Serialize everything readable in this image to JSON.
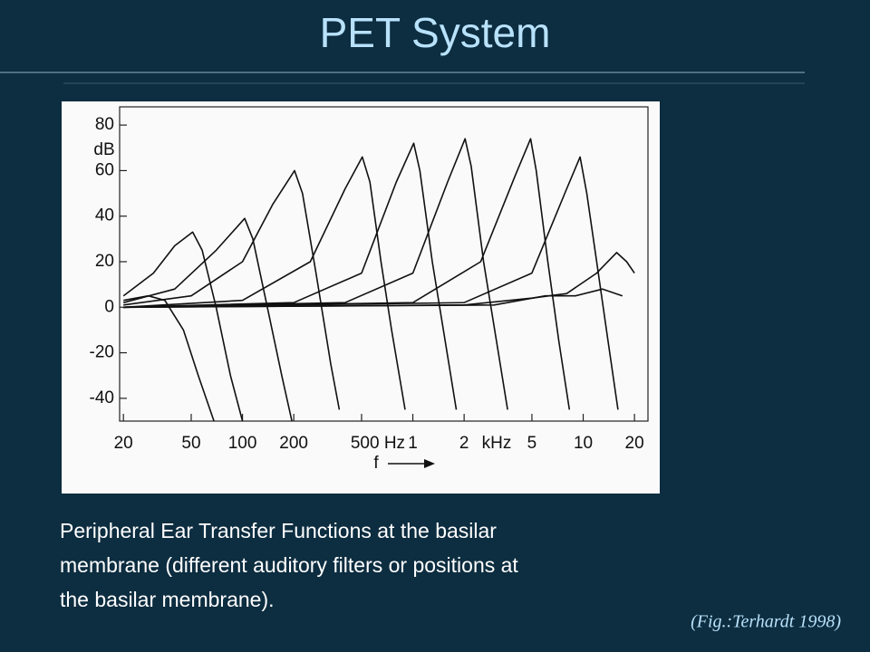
{
  "title": "PET System",
  "caption": [
    "Peripheral Ear Transfer Functions at the basilar",
    "membrane (different auditory filters or positions at",
    "the basilar membrane)."
  ],
  "source": "(Fig.:Terhardt 1998)",
  "chart_data": {
    "type": "line",
    "xlog": true,
    "color": "#111111",
    "ylabel": "dB",
    "xlabel": "f",
    "xunit": "kHz",
    "xlim": [
      19,
      24000
    ],
    "ylim": [
      -50,
      88
    ],
    "xticks": [
      20,
      50,
      100,
      200,
      {
        "value": 500,
        "label": "500 Hz"
      },
      {
        "value": 1000,
        "label": "1"
      },
      {
        "value": 2000,
        "label": "2"
      },
      {
        "value": 5000,
        "label": "5"
      },
      {
        "value": 10000,
        "label": "10"
      },
      {
        "value": 20000,
        "label": "20"
      }
    ],
    "yticks": [
      80,
      60,
      40,
      20,
      0,
      -20,
      -40
    ],
    "series": [
      {
        "x": [
          20,
          28,
          35,
          45,
          55,
          68
        ],
        "values": [
          3,
          5,
          3,
          -10,
          -30,
          -50
        ]
      },
      {
        "x": [
          20,
          30,
          40,
          51,
          58,
          70,
          85,
          100
        ],
        "values": [
          5,
          15,
          27,
          33,
          25,
          0,
          -30,
          -50
        ]
      },
      {
        "x": [
          20,
          40,
          70,
          103,
          115,
          140,
          170,
          195
        ],
        "values": [
          2,
          8,
          25,
          39,
          30,
          0,
          -30,
          -50
        ]
      },
      {
        "x": [
          20,
          50,
          100,
          150,
          202,
          225,
          270,
          330,
          370
        ],
        "values": [
          1,
          5,
          20,
          45,
          60,
          50,
          15,
          -25,
          -45
        ]
      },
      {
        "x": [
          20,
          100,
          250,
          400,
          505,
          560,
          650,
          750,
          900
        ],
        "values": [
          0,
          3,
          20,
          52,
          66,
          55,
          20,
          -10,
          -45
        ]
      },
      {
        "x": [
          20,
          200,
          500,
          800,
          1012,
          1100,
          1300,
          1550,
          1800
        ],
        "values": [
          0,
          2,
          15,
          55,
          72,
          60,
          20,
          -15,
          -45
        ]
      },
      {
        "x": [
          20,
          400,
          1000,
          1600,
          2025,
          2200,
          2600,
          3100,
          3600
        ],
        "values": [
          0,
          2,
          15,
          55,
          74,
          62,
          20,
          -15,
          -45
        ]
      },
      {
        "x": [
          20,
          1000,
          2500,
          4000,
          4915,
          5300,
          6200,
          7200,
          8300
        ],
        "values": [
          0,
          2,
          20,
          58,
          74,
          60,
          20,
          -15,
          -45
        ]
      },
      {
        "x": [
          20,
          2000,
          5000,
          8000,
          9585,
          10500,
          12000,
          14000,
          16000
        ],
        "values": [
          0,
          2,
          15,
          52,
          66,
          50,
          20,
          -15,
          -45
        ]
      },
      {
        "x": [
          20,
          2000,
          5000,
          8000,
          12000,
          15700,
          18000,
          20000
        ],
        "values": [
          0,
          1,
          4,
          6,
          15,
          24,
          20,
          15
        ]
      },
      {
        "x": [
          20,
          3000,
          6000,
          9000,
          13000,
          17000
        ],
        "values": [
          0,
          1,
          5,
          5,
          8,
          5
        ]
      }
    ]
  }
}
